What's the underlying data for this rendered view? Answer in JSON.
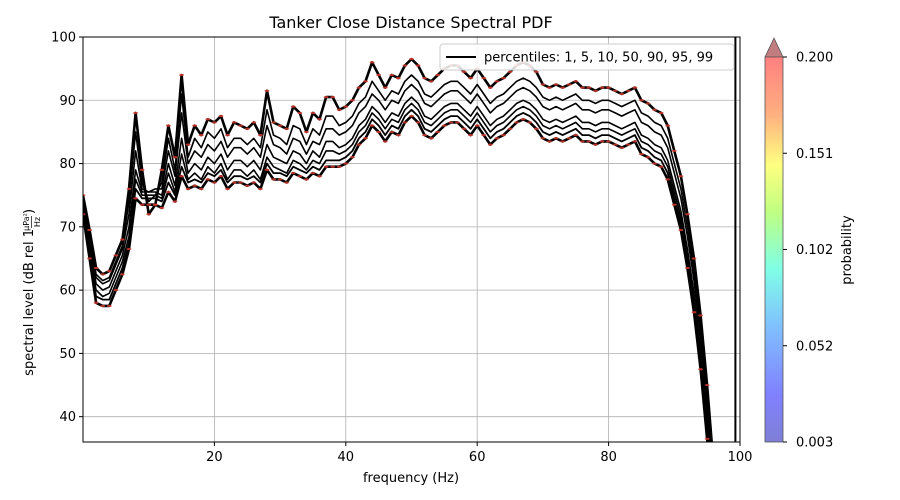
{
  "chart_data": {
    "type": "line",
    "title": "Tanker Close Distance Spectral PDF",
    "xlabel": "frequency (Hz)",
    "ylabel_main": "spectral level (dB rel 1",
    "ylabel_frac_num": "µPa²",
    "ylabel_frac_den": "Hz",
    "ylabel_close": ")",
    "xlim": [
      0,
      100
    ],
    "ylim": [
      36,
      100
    ],
    "xticks": [
      20,
      40,
      60,
      80,
      100
    ],
    "yticks": [
      40,
      50,
      60,
      70,
      80,
      90,
      100
    ],
    "grid": true,
    "legend": {
      "label": "percentiles: 1, 5, 10, 50, 90, 95, 99",
      "position": "upper-right"
    },
    "vline_x": 99.3,
    "colorbar": {
      "label": "probability",
      "ticks": [
        "0.003",
        "0.052",
        "0.102",
        "0.151",
        "0.200"
      ],
      "extend": "max"
    },
    "x": [
      0,
      1,
      2,
      3,
      4,
      5,
      6,
      7,
      8,
      9,
      10,
      11,
      12,
      13,
      14,
      15,
      16,
      17,
      18,
      19,
      20,
      21,
      22,
      23,
      24,
      25,
      26,
      27,
      28,
      29,
      30,
      31,
      32,
      33,
      34,
      35,
      36,
      37,
      38,
      39,
      40,
      41,
      42,
      43,
      44,
      45,
      46,
      47,
      48,
      49,
      50,
      51,
      52,
      53,
      54,
      55,
      56,
      57,
      58,
      59,
      60,
      61,
      62,
      63,
      64,
      65,
      66,
      67,
      68,
      69,
      70,
      71,
      72,
      73,
      74,
      75,
      76,
      77,
      78,
      79,
      80,
      81,
      82,
      83,
      84,
      85,
      86,
      87,
      88,
      89,
      90,
      91,
      92,
      93,
      94,
      95,
      96
    ],
    "series": [
      {
        "name": "99",
        "width": 2.6,
        "values": [
          75,
          69.5,
          63.5,
          62.5,
          63,
          65.5,
          68,
          76,
          88,
          79,
          72,
          73.5,
          79,
          86,
          81,
          94,
          83,
          86,
          84.5,
          87,
          86.5,
          87.5,
          84.5,
          86.5,
          86,
          85.5,
          86.5,
          84.5,
          91.5,
          86.5,
          86,
          85.5,
          89,
          88,
          85,
          88,
          87,
          90.5,
          90.5,
          88.5,
          89,
          90,
          92,
          93,
          96,
          94,
          92,
          94,
          93.5,
          95.5,
          96.5,
          95.5,
          93.5,
          93,
          94,
          95,
          95.5,
          95.5,
          94.5,
          93.5,
          95,
          93.5,
          92,
          93,
          93.5,
          94.5,
          95.5,
          96,
          95.5,
          94.5,
          92.5,
          92,
          92.5,
          92,
          92.5,
          93,
          92,
          92,
          91.5,
          92,
          92,
          91.5,
          91,
          91.5,
          92,
          90,
          89.5,
          88.5,
          88,
          86,
          82,
          78,
          72,
          65,
          56,
          45,
          32
        ]
      },
      {
        "name": "95",
        "width": 1.6,
        "values": [
          74.5,
          68.5,
          62.5,
          61.5,
          62,
          64.5,
          67,
          74,
          85,
          77,
          74,
          75,
          77,
          84,
          79,
          91,
          81,
          84,
          82.5,
          85,
          84,
          85.5,
          82.5,
          84,
          84,
          83,
          84,
          82.5,
          88.5,
          84.5,
          84,
          83,
          86,
          85.5,
          83,
          85.5,
          84.5,
          87.5,
          87.5,
          86,
          86.5,
          87.5,
          89.5,
          90.5,
          93,
          91.5,
          90,
          91.5,
          91,
          93,
          94,
          93,
          91,
          90.5,
          91.5,
          92.5,
          93,
          93,
          92,
          91,
          92.5,
          91,
          89.5,
          90.5,
          91,
          92,
          93,
          93.5,
          93,
          92,
          90.5,
          90,
          90.5,
          90,
          90.5,
          91,
          90,
          90,
          89.5,
          90,
          90,
          89.5,
          89,
          89.5,
          90,
          88,
          87.5,
          86.5,
          86,
          84,
          80,
          76,
          70,
          63,
          54,
          43,
          30
        ]
      },
      {
        "name": "90",
        "width": 1.6,
        "values": [
          74,
          68,
          62,
          61,
          61.5,
          64,
          66.5,
          72,
          82,
          76,
          75.5,
          76,
          76,
          82,
          78,
          88,
          80,
          82,
          81,
          83,
          82,
          83.5,
          81,
          82.5,
          82.5,
          81.5,
          82.5,
          81,
          86,
          83,
          82.5,
          81.5,
          84,
          83.5,
          81.5,
          83.5,
          83,
          85.5,
          85.5,
          84.5,
          85,
          86,
          88,
          89,
          91,
          90,
          88.5,
          90,
          89.5,
          91.5,
          92.5,
          91.5,
          89.5,
          89,
          90,
          91,
          91.5,
          91.5,
          90.5,
          89.5,
          91,
          89.5,
          88,
          89,
          89.5,
          90.5,
          91.5,
          92,
          91.5,
          90.5,
          89,
          88.5,
          89,
          88.5,
          89,
          89.5,
          88.5,
          88.5,
          88,
          88.5,
          88.5,
          88,
          87.5,
          88,
          88.5,
          86.5,
          86,
          85,
          84.5,
          82.5,
          78.5,
          74.5,
          68.5,
          61.5,
          52.5,
          41.5,
          29
        ]
      },
      {
        "name": "50",
        "width": 1.6,
        "values": [
          73.5,
          67,
          61,
          60,
          60.5,
          63,
          65.5,
          70,
          79,
          75.5,
          75.5,
          75.5,
          75,
          80,
          76.5,
          84,
          78.5,
          80,
          79,
          81,
          80,
          81.5,
          79,
          80.5,
          80.5,
          79.5,
          80.5,
          79,
          83,
          81,
          80.5,
          80,
          82,
          81.5,
          80,
          82,
          81,
          83.5,
          83.5,
          82.5,
          83,
          84,
          86,
          87,
          89,
          88,
          86.5,
          88,
          87.5,
          89.5,
          90.5,
          89.5,
          87.5,
          87,
          88,
          89,
          89.5,
          89.5,
          88.5,
          87.5,
          89,
          87.5,
          86,
          87,
          87.5,
          88.5,
          89.5,
          90,
          89.5,
          88.5,
          87,
          86.5,
          87,
          86.5,
          87,
          87.5,
          86.5,
          86.5,
          86,
          86.5,
          86.5,
          86,
          85.5,
          86,
          86.5,
          84.5,
          84,
          83,
          82.5,
          80.5,
          76.5,
          72.5,
          66.5,
          59.5,
          50.5,
          39.5,
          27
        ]
      },
      {
        "name": "10",
        "width": 1.6,
        "values": [
          73,
          66,
          60,
          59,
          59.5,
          62,
          64.5,
          68.5,
          77.5,
          75,
          75,
          75,
          74.5,
          78.5,
          75.5,
          81.5,
          77.5,
          78.5,
          77.5,
          79.5,
          78.5,
          80,
          77.5,
          79,
          79,
          78,
          79,
          77.5,
          81,
          79.5,
          79,
          78.5,
          80.5,
          80,
          79,
          80.5,
          80,
          82,
          82,
          81.5,
          82,
          83,
          85,
          86,
          88,
          87,
          85.5,
          87,
          86.5,
          88.5,
          89.5,
          88.5,
          86.5,
          86,
          87,
          88,
          88.5,
          88.5,
          87.5,
          86.5,
          88,
          86.5,
          85,
          86,
          86.5,
          87.5,
          88.5,
          89,
          88.5,
          87.5,
          86,
          85.5,
          86,
          85.5,
          86,
          86.5,
          85.5,
          85.5,
          85,
          85.5,
          85.5,
          85,
          84.5,
          85,
          85.5,
          83.5,
          83,
          82,
          81.5,
          79.5,
          75.5,
          71.5,
          65.5,
          58.5,
          49.5,
          38.5,
          26
        ]
      },
      {
        "name": "5",
        "width": 1.8,
        "values": [
          72.5,
          65.5,
          59,
          58.5,
          58.5,
          61,
          63.5,
          67.5,
          76,
          74.5,
          74.5,
          74.5,
          74,
          77,
          75,
          79.5,
          77,
          77.5,
          77,
          78.5,
          78,
          79,
          77,
          78,
          78,
          77.5,
          78,
          77,
          80,
          78.5,
          78.5,
          78,
          79.5,
          79,
          78.5,
          79.5,
          79,
          80.5,
          80.5,
          80.5,
          81,
          82,
          84,
          85,
          87,
          86,
          84.5,
          86,
          85.5,
          87.5,
          88.5,
          87.5,
          85.5,
          85,
          86,
          87,
          87.5,
          87.5,
          86.5,
          85.5,
          87,
          85.5,
          84,
          85,
          85.5,
          86.5,
          87.5,
          88,
          87.5,
          86.5,
          85,
          84.5,
          85,
          84.5,
          85,
          85.5,
          84.5,
          84.5,
          84,
          84.5,
          84.5,
          84,
          83.5,
          84,
          84.5,
          82.5,
          82,
          81,
          80.5,
          78.5,
          74.5,
          70.5,
          64.5,
          57.5,
          48.5,
          37.5,
          25
        ]
      },
      {
        "name": "1",
        "width": 2.6,
        "values": [
          72,
          65,
          58,
          57.5,
          57.5,
          60,
          62.5,
          66.5,
          74.5,
          73.5,
          73.5,
          73.5,
          73,
          75.5,
          74,
          78,
          76,
          76.5,
          76,
          77.5,
          77,
          78,
          76,
          77,
          77,
          76.5,
          77,
          76,
          79,
          77.5,
          77.5,
          77,
          78.5,
          78,
          77.5,
          78.5,
          78,
          79.5,
          79.5,
          79.5,
          80,
          81,
          83,
          84,
          86,
          85,
          83.5,
          85,
          84.5,
          86.5,
          87.5,
          86.5,
          84.5,
          84,
          85,
          86,
          86.5,
          86.5,
          85.5,
          84.5,
          86,
          84.5,
          83,
          84,
          84.5,
          85.5,
          86.5,
          87,
          86.5,
          85.5,
          84,
          83.5,
          84,
          83.5,
          84,
          84.5,
          83.5,
          83.5,
          83,
          83.5,
          83.5,
          83,
          82.5,
          83,
          83.5,
          81.5,
          81,
          80,
          79.5,
          77.5,
          73.5,
          69.5,
          63.5,
          56.5,
          47.5,
          36.5,
          24
        ]
      }
    ]
  }
}
